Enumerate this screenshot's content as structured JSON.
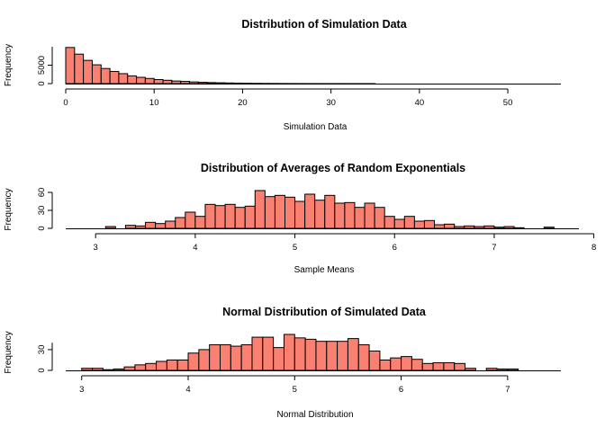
{
  "colors": {
    "bar_fill": "#fa8072",
    "bar_stroke": "#000000",
    "axis": "#000000"
  },
  "chart_data": [
    {
      "type": "bar",
      "title": "Distribution of Simulation Data",
      "xlabel": "Simulation Data",
      "ylabel": "Frequency",
      "bin_start": 0,
      "bin_width": 1,
      "values": [
        9800,
        8000,
        6300,
        5100,
        4100,
        3300,
        2700,
        2100,
        1700,
        1400,
        1100,
        900,
        700,
        600,
        450,
        350,
        280,
        220,
        170,
        130,
        100,
        70,
        50,
        40,
        30,
        20,
        15,
        10,
        8,
        6,
        5,
        4,
        3,
        2,
        2,
        1,
        1,
        1,
        1,
        0,
        0,
        0,
        0,
        0,
        0,
        0,
        0,
        0,
        0,
        0,
        0,
        0,
        0,
        0,
        0
      ],
      "xlim": [
        0,
        56
      ],
      "ylim": [
        0,
        10000
      ],
      "x_ticks": [
        "0",
        "10",
        "20",
        "30",
        "40",
        "50"
      ],
      "y_ticks": [
        "0",
        "5000"
      ],
      "x_axis_span": [
        0,
        50
      ],
      "y_axis_span": [
        0,
        10000
      ],
      "grid": false,
      "legend": "none"
    },
    {
      "type": "bar",
      "title": "Distribution of Averages of Random Exponentials",
      "xlabel": "Sample Means",
      "ylabel": "Frequency",
      "bin_start": 2.9,
      "bin_width": 0.1,
      "values": [
        0,
        0,
        3,
        0,
        5,
        4,
        10,
        8,
        12,
        18,
        27,
        20,
        40,
        38,
        40,
        35,
        37,
        63,
        53,
        55,
        52,
        45,
        57,
        47,
        55,
        42,
        43,
        35,
        42,
        35,
        20,
        15,
        20,
        12,
        13,
        6,
        7,
        3,
        4,
        3,
        4,
        2,
        3,
        1,
        0,
        0,
        2
      ],
      "xlim": [
        2.7,
        7.85
      ],
      "ylim": [
        0,
        63
      ],
      "x_ticks": [
        "3",
        "4",
        "5",
        "6",
        "7",
        "8"
      ],
      "y_ticks": [
        "0",
        "30",
        "60"
      ],
      "x_axis_span": [
        3,
        8
      ],
      "y_axis_span": [
        0,
        60
      ],
      "grid": false,
      "legend": "none"
    },
    {
      "type": "bar",
      "title": "Normal Distribution of Simulated Data",
      "xlabel": "Normal Distribution",
      "ylabel": "Frequency",
      "bin_start": 3.0,
      "bin_width": 0.1,
      "values": [
        3,
        3,
        1,
        2,
        5,
        8,
        10,
        13,
        15,
        15,
        25,
        30,
        37,
        37,
        35,
        37,
        48,
        48,
        33,
        52,
        47,
        45,
        42,
        42,
        42,
        46,
        37,
        28,
        15,
        18,
        20,
        16,
        10,
        11,
        11,
        10,
        3,
        0,
        3,
        2,
        2
      ],
      "xlim": [
        2.85,
        7.5
      ],
      "ylim": [
        0,
        52
      ],
      "x_ticks": [
        "3",
        "4",
        "5",
        "6",
        "7"
      ],
      "y_ticks": [
        "0",
        "30"
      ],
      "x_axis_span": [
        3,
        7
      ],
      "y_axis_span": [
        0,
        40
      ],
      "grid": false,
      "legend": "none"
    }
  ]
}
